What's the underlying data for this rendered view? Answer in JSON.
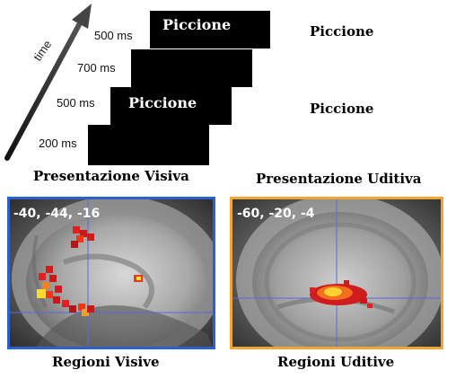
{
  "timeline": {
    "axis_label": "time",
    "frames": [
      {
        "duration": "500 ms",
        "word": "Piccione"
      },
      {
        "duration": "700 ms",
        "word": ""
      },
      {
        "duration": "500 ms",
        "word": "Piccione"
      },
      {
        "duration": "200 ms",
        "word": ""
      }
    ],
    "audio_words": [
      "Piccione",
      "Piccione"
    ]
  },
  "conditions": {
    "visual": "Presentazione Visiva",
    "auditory": "Presentazione Uditiva"
  },
  "scans": {
    "visual": {
      "coords": "-40, -44, -16",
      "caption": "Regioni Visive",
      "border_color": "#2a62c9"
    },
    "auditory": {
      "coords": "-60, -20, -4",
      "caption": "Regioni Uditive",
      "border_color": "#f2a533"
    }
  }
}
